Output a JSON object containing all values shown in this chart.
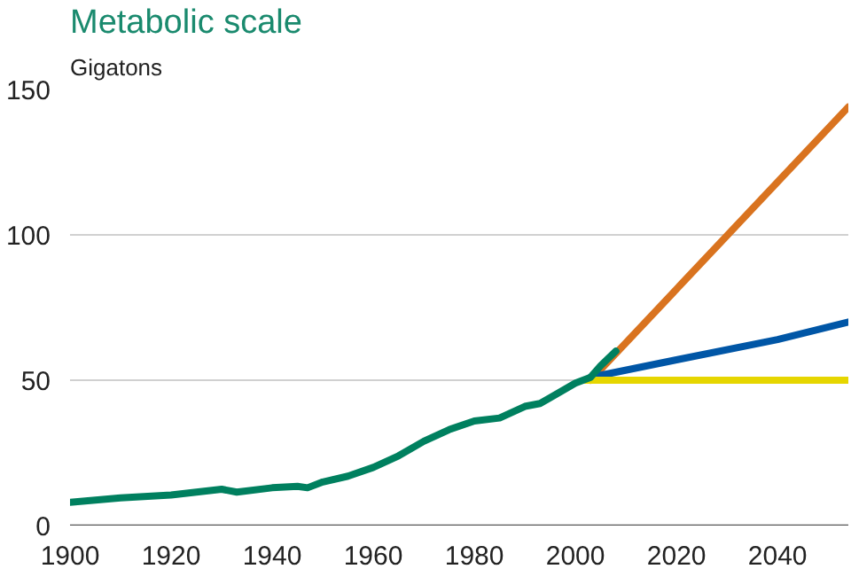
{
  "chart_data": {
    "type": "line",
    "title": "Metabolic scale",
    "ylabel": "Gigatons",
    "xlim": [
      1900,
      2054
    ],
    "xticks": [
      1900,
      1920,
      1940,
      1960,
      1980,
      2000,
      2020,
      2040
    ],
    "ylim": [
      0,
      150
    ],
    "yticks": [
      0,
      50,
      100,
      150
    ],
    "grid": "y",
    "series": [
      {
        "color": "#d9731f",
        "x": [
          2003,
          2054
        ],
        "values": [
          50,
          144
        ]
      },
      {
        "color": "#0056a6",
        "x": [
          2003,
          2020,
          2040,
          2054
        ],
        "values": [
          51,
          57,
          64,
          70
        ]
      },
      {
        "color": "#e6d600",
        "x": [
          2002,
          2054
        ],
        "values": [
          50,
          50
        ]
      },
      {
        "color": "#00805f",
        "x": [
          1900,
          1910,
          1920,
          1925,
          1930,
          1933,
          1940,
          1945,
          1947,
          1950,
          1955,
          1960,
          1965,
          1970,
          1975,
          1980,
          1985,
          1990,
          1993,
          1995,
          2000,
          2003,
          2005,
          2008
        ],
        "values": [
          8,
          9.5,
          10.5,
          11.5,
          12.5,
          11.5,
          13,
          13.5,
          13,
          15,
          17,
          20,
          24,
          29,
          33,
          36,
          37,
          41,
          42,
          44,
          49,
          51,
          55,
          60
        ]
      }
    ]
  }
}
